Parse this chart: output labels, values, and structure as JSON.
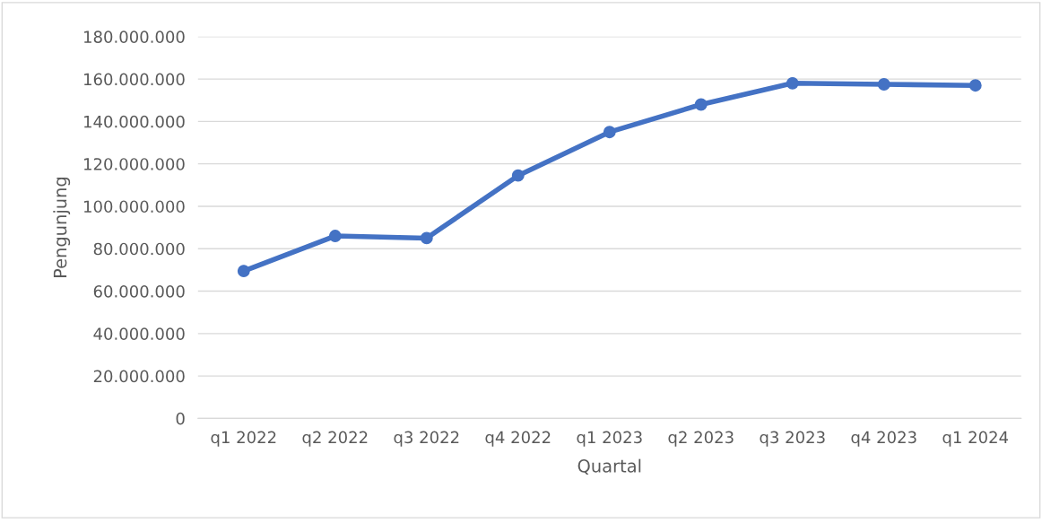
{
  "chart_data": {
    "type": "line",
    "xlabel": "Quartal",
    "ylabel": "Pengunjung",
    "categories": [
      "q1 2022",
      "q2 2022",
      "q3 2022",
      "q4 2022",
      "q1 2023",
      "q2 2023",
      "q3 2023",
      "q4 2023",
      "q1 2024"
    ],
    "series": [
      {
        "color": "#4472c4",
        "values": [
          69500000,
          86000000,
          85000000,
          114500000,
          135000000,
          148000000,
          158000000,
          157500000,
          157000000
        ]
      }
    ],
    "ylim": [
      0,
      180000000
    ],
    "yticks": [
      0,
      {
        "value": 20000000,
        "label": "20.000.000"
      },
      {
        "value": 40000000,
        "label": "40.000.000"
      },
      {
        "value": 60000000,
        "label": "60.000.000"
      },
      {
        "value": 80000000,
        "label": "80.000.000"
      },
      {
        "value": 100000000,
        "label": "100.000.000"
      },
      {
        "value": 120000000,
        "label": "120.000.000"
      },
      {
        "value": 140000000,
        "label": "140.000.000"
      },
      {
        "value": 160000000,
        "label": "160.000.000"
      },
      {
        "value": 180000000,
        "label": "180.000.000"
      }
    ],
    "grid": "y",
    "marker": "circle",
    "line_style": "solid"
  }
}
